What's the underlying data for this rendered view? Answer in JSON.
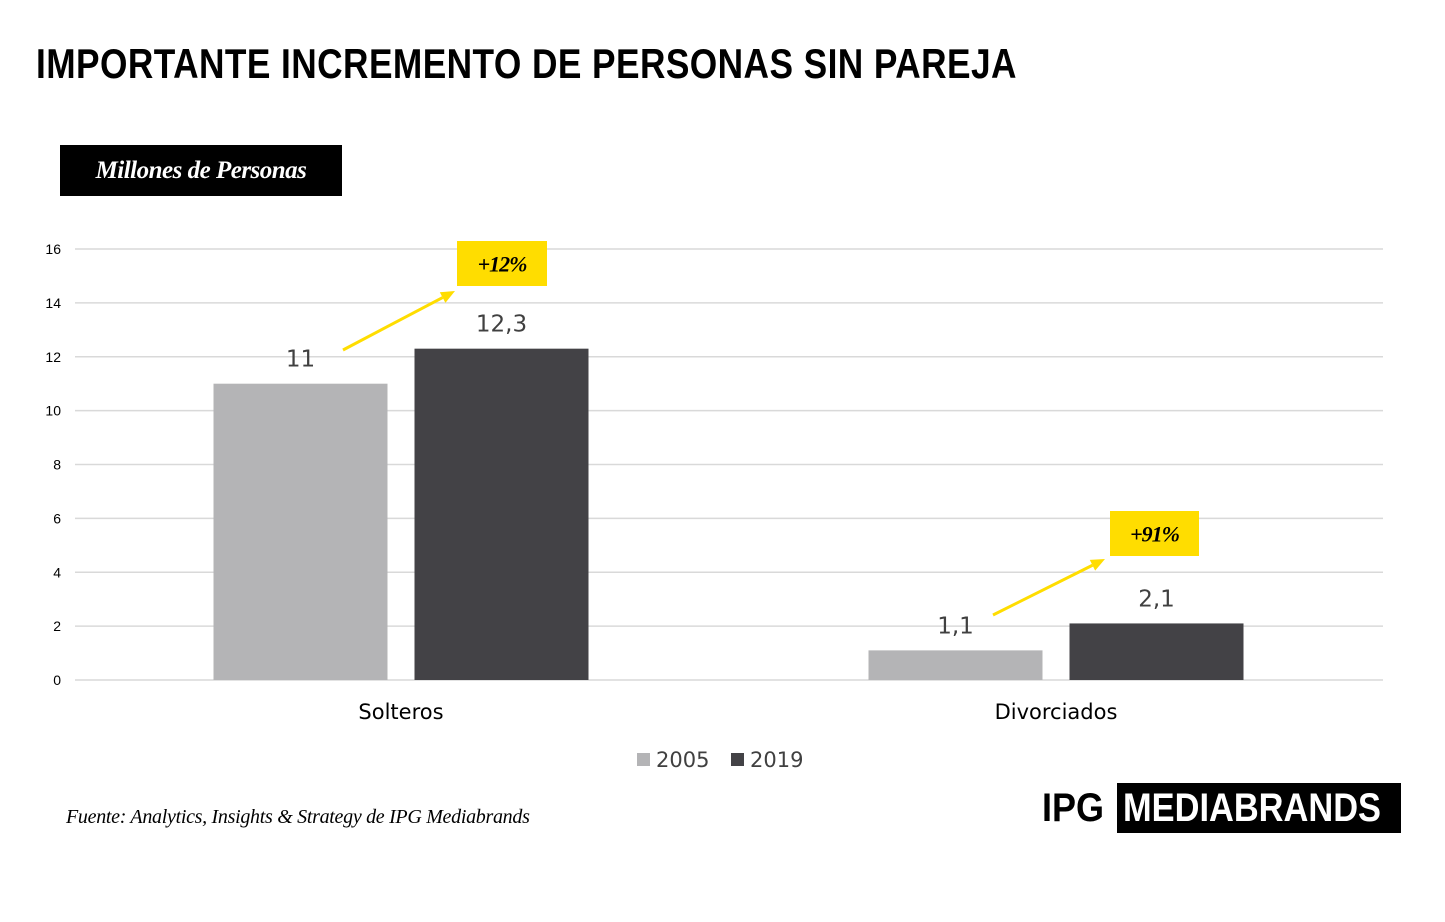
{
  "title": "IMPORTANTE INCREMENTO DE PERSONAS SIN PAREJA",
  "unit_label": "Millones de Personas",
  "source": "Fuente: Analytics, Insights & Strategy de IPG Mediabrands",
  "brand": {
    "prefix": "IPG",
    "name": "MEDIABRANDS"
  },
  "colors": {
    "series_2005": "#b4b4b6",
    "series_2019": "#434246",
    "callout": "#ffdd00",
    "grid": "#d9d9d9"
  },
  "chart_data": {
    "type": "bar",
    "categories": [
      "Solteros",
      "Divorciados"
    ],
    "series": [
      {
        "name": "2005",
        "values": [
          11,
          1.1
        ],
        "labels": [
          "11",
          "1,1"
        ]
      },
      {
        "name": "2019",
        "values": [
          12.3,
          2.1
        ],
        "labels": [
          "12,3",
          "2,1"
        ]
      }
    ],
    "yticks": [
      0,
      2,
      4,
      6,
      8,
      10,
      12,
      14,
      16
    ],
    "ylim": [
      0,
      16
    ],
    "grid": true,
    "legend_position": "bottom",
    "annotations": [
      "+12%",
      "+91%"
    ]
  }
}
